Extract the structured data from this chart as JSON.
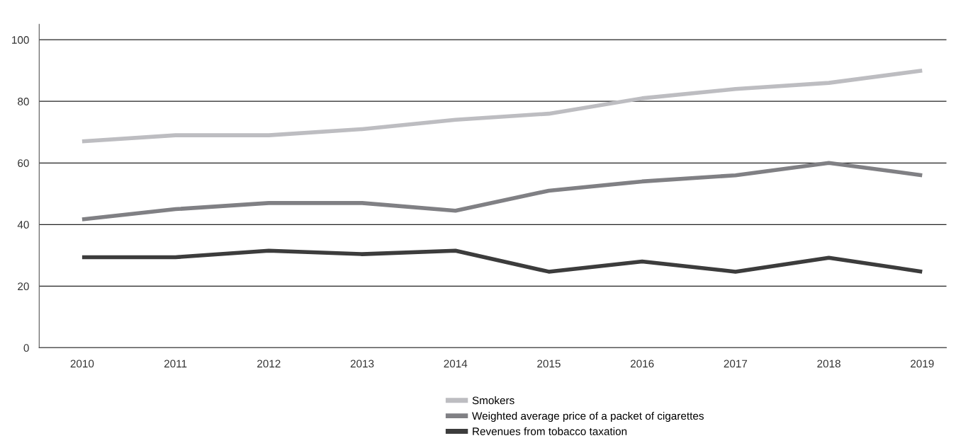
{
  "chart_data": {
    "type": "line",
    "categories": [
      "2010",
      "2011",
      "2012",
      "2013",
      "2014",
      "2015",
      "2016",
      "2017",
      "2018",
      "2019"
    ],
    "series": [
      {
        "name": "Smokers",
        "color": "#bdbdc1",
        "values": [
          67,
          69,
          69,
          71,
          74,
          76,
          81,
          84,
          86,
          90
        ]
      },
      {
        "name": "Weighted average price of a packet of cigarettes",
        "color": "#808084",
        "values": [
          41.7,
          45,
          47,
          47,
          44.5,
          51,
          54,
          56,
          60,
          56
        ]
      },
      {
        "name": "Revenues from tobacco taxation",
        "color": "#3c3c3c",
        "values": [
          29.4,
          29.4,
          31.5,
          30.4,
          31.5,
          24.7,
          28,
          24.7,
          29.2,
          24.7
        ]
      }
    ],
    "ylim": [
      0,
      105
    ],
    "yticks": [
      0,
      20,
      40,
      60,
      80,
      100
    ],
    "grid": "y",
    "legend": "bottom",
    "marker": "none",
    "line_style": "solid"
  }
}
